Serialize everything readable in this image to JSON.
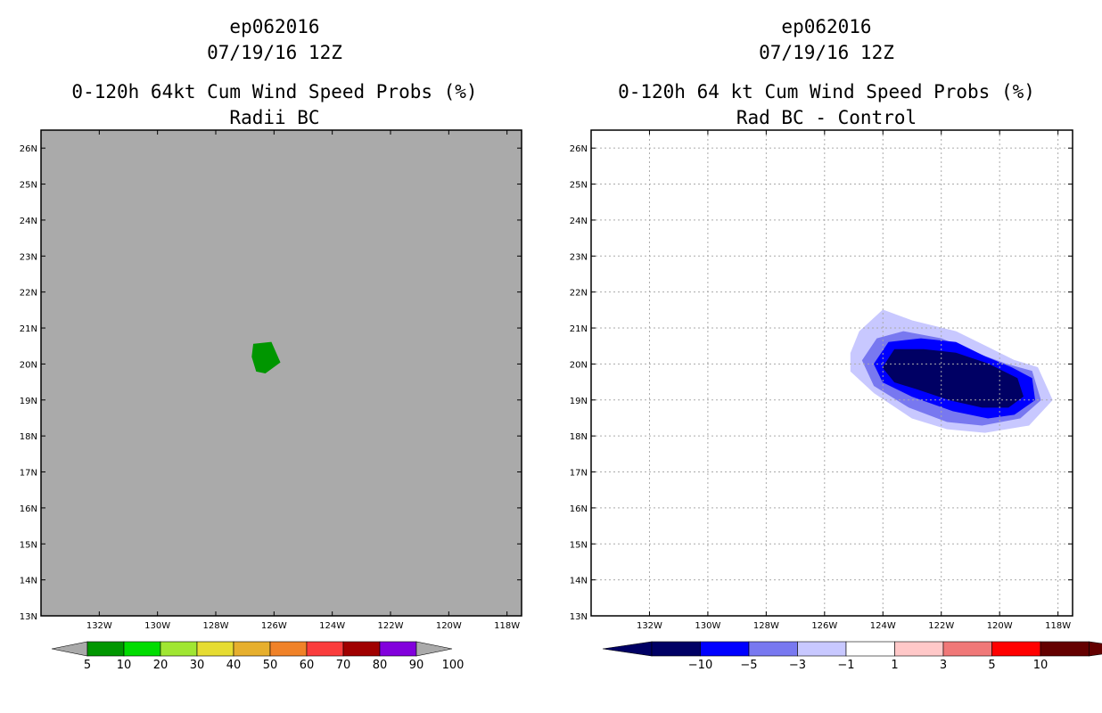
{
  "chart_data": [
    {
      "type": "heatmap",
      "storm_id": "ep062016",
      "date": "07/19/16 12Z",
      "title": "0-120h 64kt Cum Wind Speed Probs (%)",
      "subtitle": "Radii BC",
      "xlim": [
        -134,
        -117.5
      ],
      "ylim": [
        13,
        26.5
      ],
      "x_ticks": [
        "132W",
        "130W",
        "128W",
        "126W",
        "124W",
        "122W",
        "120W",
        "118W"
      ],
      "x_tick_values": [
        -132,
        -130,
        -128,
        -126,
        -124,
        -122,
        -120,
        -118
      ],
      "y_ticks": [
        "13N",
        "14N",
        "15N",
        "16N",
        "17N",
        "18N",
        "19N",
        "20N",
        "21N",
        "22N",
        "23N",
        "24N",
        "25N",
        "26N"
      ],
      "y_tick_values": [
        13,
        14,
        15,
        16,
        17,
        18,
        19,
        20,
        21,
        22,
        23,
        24,
        25,
        26
      ],
      "grid": false,
      "background_color": "#aaaaaa",
      "contours": [
        {
          "level": "5-10",
          "color": "#009600",
          "polygon": [
            [
              -126.7,
              20.55
            ],
            [
              -126.1,
              20.6
            ],
            [
              -125.8,
              20.05
            ],
            [
              -126.3,
              19.75
            ],
            [
              -126.6,
              19.8
            ],
            [
              -126.75,
              20.2
            ]
          ]
        }
      ],
      "colorbar": {
        "labels": [
          "5",
          "10",
          "20",
          "30",
          "40",
          "50",
          "60",
          "70",
          "80",
          "90",
          "100"
        ],
        "colors": [
          "#009600",
          "#00dc00",
          "#a0e632",
          "#e6dc32",
          "#e6af2d",
          "#f08228",
          "#fa3c3c",
          "#a00000",
          "#8200dc"
        ],
        "low_extend_color": "#aaaaaa",
        "high_extend_color": "#aaaaaa"
      }
    },
    {
      "type": "heatmap",
      "storm_id": "ep062016",
      "date": "07/19/16 12Z",
      "title": "0-120h 64 kt Cum Wind Speed Probs (%)",
      "subtitle": "Rad BC - Control",
      "xlim": [
        -134,
        -117.5
      ],
      "ylim": [
        13,
        26.5
      ],
      "x_ticks": [
        "132W",
        "130W",
        "128W",
        "126W",
        "124W",
        "122W",
        "120W",
        "118W"
      ],
      "x_tick_values": [
        -132,
        -130,
        -128,
        -126,
        -124,
        -122,
        -120,
        -118
      ],
      "y_ticks": [
        "13N",
        "14N",
        "15N",
        "16N",
        "17N",
        "18N",
        "19N",
        "20N",
        "21N",
        "22N",
        "23N",
        "24N",
        "25N",
        "26N"
      ],
      "y_tick_values": [
        13,
        14,
        15,
        16,
        17,
        18,
        19,
        20,
        21,
        22,
        23,
        24,
        25,
        26
      ],
      "grid": true,
      "background_color": "#ffffff",
      "contours": [
        {
          "level": "-3 to -1",
          "color": "#c8c8ff",
          "polygon": [
            [
              -125.1,
              20.3
            ],
            [
              -124.8,
              20.9
            ],
            [
              -124.0,
              21.5
            ],
            [
              -123.0,
              21.2
            ],
            [
              -121.5,
              20.9
            ],
            [
              -120.5,
              20.5
            ],
            [
              -119.5,
              20.1
            ],
            [
              -118.7,
              19.9
            ],
            [
              -118.2,
              19.0
            ],
            [
              -119.0,
              18.3
            ],
            [
              -120.5,
              18.1
            ],
            [
              -121.8,
              18.2
            ],
            [
              -123.0,
              18.5
            ],
            [
              -124.3,
              19.2
            ],
            [
              -125.1,
              19.8
            ]
          ]
        },
        {
          "level": "-5 to -3",
          "color": "#7878f0",
          "polygon": [
            [
              -124.7,
              20.1
            ],
            [
              -124.2,
              20.7
            ],
            [
              -123.3,
              20.9
            ],
            [
              -122.0,
              20.7
            ],
            [
              -120.8,
              20.3
            ],
            [
              -119.8,
              20.0
            ],
            [
              -118.9,
              19.8
            ],
            [
              -118.6,
              19.0
            ],
            [
              -119.3,
              18.5
            ],
            [
              -120.6,
              18.3
            ],
            [
              -121.8,
              18.4
            ],
            [
              -123.1,
              18.8
            ],
            [
              -124.3,
              19.4
            ]
          ]
        },
        {
          "level": "-10 to -5",
          "color": "#0000ff",
          "polygon": [
            [
              -124.3,
              20.0
            ],
            [
              -123.8,
              20.6
            ],
            [
              -122.7,
              20.7
            ],
            [
              -121.5,
              20.6
            ],
            [
              -120.5,
              20.2
            ],
            [
              -119.6,
              19.9
            ],
            [
              -118.9,
              19.6
            ],
            [
              -118.8,
              19.0
            ],
            [
              -119.5,
              18.6
            ],
            [
              -120.4,
              18.5
            ],
            [
              -121.6,
              18.7
            ],
            [
              -123.0,
              19.1
            ],
            [
              -124.0,
              19.5
            ]
          ]
        },
        {
          "level": "< -10",
          "color": "#000064",
          "polygon": [
            [
              -124.0,
              19.9
            ],
            [
              -123.6,
              20.4
            ],
            [
              -122.6,
              20.4
            ],
            [
              -121.5,
              20.3
            ],
            [
              -120.4,
              20.0
            ],
            [
              -119.4,
              19.6
            ],
            [
              -119.2,
              19.1
            ],
            [
              -119.7,
              18.8
            ],
            [
              -120.6,
              18.8
            ],
            [
              -121.7,
              19.0
            ],
            [
              -122.8,
              19.3
            ],
            [
              -123.6,
              19.5
            ]
          ]
        }
      ],
      "colorbar": {
        "labels": [
          "-10",
          "-5",
          "-3",
          "-1",
          "1",
          "3",
          "5",
          "10"
        ],
        "colors": [
          "#000064",
          "#0000ff",
          "#7878f0",
          "#c8c8ff",
          "#ffffff",
          "#ffc8c8",
          "#f07878",
          "#ff0000",
          "#640000"
        ],
        "low_extend_color": "#000064",
        "high_extend_color": "#640000"
      }
    }
  ]
}
